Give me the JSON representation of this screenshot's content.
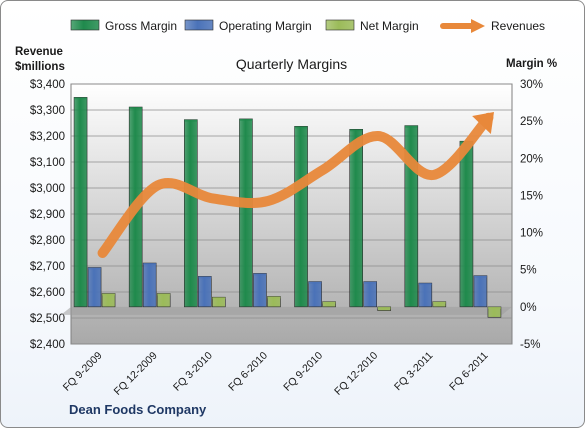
{
  "chart_data": {
    "type": "bar",
    "title": "Quarterly Margins",
    "company": "Dean Foods Company",
    "left_axis_title": [
      "Revenue",
      "$millions"
    ],
    "right_axis_title": "Margin %",
    "categories": [
      "FQ 9-2009",
      "FQ 12-2009",
      "FQ 3-2010",
      "FQ 6-2010",
      "FQ 9-2010",
      "FQ 12-2010",
      "FQ 3-2011",
      "FQ 6-2011"
    ],
    "left_axis": {
      "min": 2400,
      "max": 3400,
      "step": 100,
      "ticks": [
        "$2,400",
        "$2,500",
        "$2,600",
        "$2,700",
        "$2,800",
        "$2,900",
        "$3,000",
        "$3,100",
        "$3,200",
        "$3,300",
        "$3,400"
      ]
    },
    "right_axis": {
      "min": -5,
      "max": 30,
      "step": 5,
      "ticks": [
        "-5%",
        "0%",
        "5%",
        "10%",
        "15%",
        "20%",
        "25%",
        "30%"
      ]
    },
    "series": [
      {
        "name": "Gross Margin",
        "axis": "right",
        "kind": "bar",
        "color": "#1f8a4c",
        "values": [
          28.2,
          26.9,
          25.2,
          25.3,
          24.3,
          23.9,
          24.4,
          22.3
        ]
      },
      {
        "name": "Operating Margin",
        "axis": "right",
        "kind": "bar",
        "color": "#4a72b8",
        "values": [
          5.3,
          5.9,
          4.1,
          4.5,
          3.4,
          3.4,
          3.2,
          4.2
        ]
      },
      {
        "name": "Net Margin",
        "axis": "right",
        "kind": "bar",
        "color": "#9bbb59",
        "values": [
          1.8,
          1.8,
          1.3,
          1.4,
          0.7,
          -0.5,
          0.7,
          -1.4
        ]
      },
      {
        "name": "Revenues",
        "axis": "left",
        "kind": "line",
        "color": "#e8883a",
        "values": [
          2750,
          3010,
          2960,
          2950,
          3070,
          3200,
          3050,
          3270
        ]
      }
    ],
    "legend_position": "top",
    "grid": true
  }
}
